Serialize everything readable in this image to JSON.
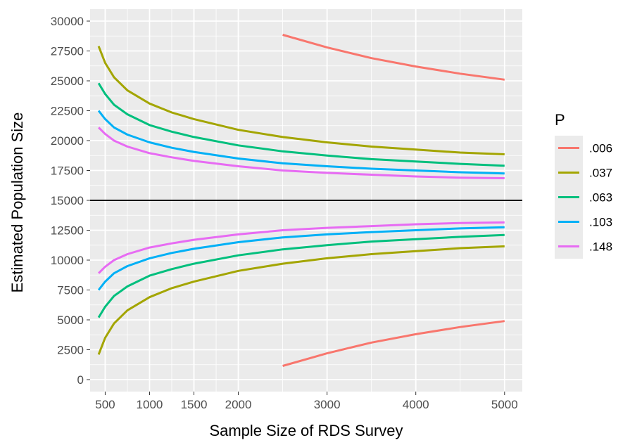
{
  "chart_data": {
    "type": "line",
    "xlabel": "Sample Size of RDS Survey",
    "ylabel": "Estimated Population Size",
    "xlim": [
      330,
      5200
    ],
    "ylim": [
      -1000,
      31000
    ],
    "x_ticks": [
      500,
      1000,
      1500,
      2000,
      3000,
      4000,
      5000
    ],
    "x_tick_labels": [
      "500",
      "1000",
      "1500",
      "2000",
      "3000",
      "4000",
      "5000"
    ],
    "y_ticks": [
      0,
      2500,
      5000,
      7500,
      10000,
      12500,
      15000,
      17500,
      20000,
      22500,
      25000,
      27500,
      30000
    ],
    "y_tick_labels": [
      "0",
      "2500",
      "5000",
      "7500",
      "10000",
      "12500",
      "15000",
      "17500",
      "20000",
      "22500",
      "25000",
      "27500",
      "30000"
    ],
    "hline": 15000,
    "grid": true,
    "legend": {
      "title": "P",
      "position": "right"
    },
    "series": [
      {
        "name": ".006",
        "color": "#F8766D",
        "band": "upper",
        "x": [
          2500,
          3000,
          3500,
          4000,
          4500,
          5000
        ],
        "y": [
          28850,
          27800,
          26900,
          26200,
          25600,
          25100
        ]
      },
      {
        "name": ".006",
        "color": "#F8766D",
        "band": "lower",
        "x": [
          2500,
          3000,
          3500,
          4000,
          4500,
          5000
        ],
        "y": [
          1150,
          2200,
          3100,
          3800,
          4400,
          4900
        ]
      },
      {
        "name": ".037",
        "color": "#A3A500",
        "band": "upper",
        "x": [
          426,
          500,
          600,
          750,
          1000,
          1250,
          1500,
          2000,
          2500,
          3000,
          3500,
          4000,
          4500,
          5000
        ],
        "y": [
          27900,
          26500,
          25300,
          24200,
          23100,
          22350,
          21800,
          20900,
          20300,
          19850,
          19500,
          19250,
          19000,
          18850
        ]
      },
      {
        "name": ".037",
        "color": "#A3A500",
        "band": "lower",
        "x": [
          426,
          500,
          600,
          750,
          1000,
          1250,
          1500,
          2000,
          2500,
          3000,
          3500,
          4000,
          4500,
          5000
        ],
        "y": [
          2100,
          3500,
          4700,
          5800,
          6900,
          7650,
          8200,
          9100,
          9700,
          10150,
          10500,
          10750,
          11000,
          11150
        ]
      },
      {
        "name": ".063",
        "color": "#00BF7D",
        "band": "upper",
        "x": [
          426,
          500,
          600,
          750,
          1000,
          1250,
          1500,
          2000,
          2500,
          3000,
          3500,
          4000,
          4500,
          5000
        ],
        "y": [
          24800,
          23900,
          23000,
          22200,
          21300,
          20750,
          20300,
          19600,
          19100,
          18750,
          18450,
          18250,
          18050,
          17900
        ]
      },
      {
        "name": ".063",
        "color": "#00BF7D",
        "band": "lower",
        "x": [
          426,
          500,
          600,
          750,
          1000,
          1250,
          1500,
          2000,
          2500,
          3000,
          3500,
          4000,
          4500,
          5000
        ],
        "y": [
          5200,
          6100,
          7000,
          7800,
          8700,
          9250,
          9700,
          10400,
          10900,
          11250,
          11550,
          11750,
          11950,
          12100
        ]
      },
      {
        "name": ".103",
        "color": "#00B0F6",
        "band": "upper",
        "x": [
          426,
          500,
          600,
          750,
          1000,
          1250,
          1500,
          2000,
          2500,
          3000,
          3500,
          4000,
          4500,
          5000
        ],
        "y": [
          22500,
          21800,
          21100,
          20500,
          19850,
          19400,
          19050,
          18500,
          18100,
          17850,
          17650,
          17500,
          17350,
          17250
        ]
      },
      {
        "name": ".103",
        "color": "#00B0F6",
        "band": "lower",
        "x": [
          426,
          500,
          600,
          750,
          1000,
          1250,
          1500,
          2000,
          2500,
          3000,
          3500,
          4000,
          4500,
          5000
        ],
        "y": [
          7500,
          8200,
          8900,
          9500,
          10150,
          10600,
          10950,
          11500,
          11900,
          12150,
          12350,
          12500,
          12650,
          12750
        ]
      },
      {
        "name": ".148",
        "color": "#E76BF3",
        "band": "upper",
        "x": [
          426,
          500,
          600,
          750,
          1000,
          1250,
          1500,
          2000,
          2500,
          3000,
          3500,
          4000,
          4500,
          5000
        ],
        "y": [
          21100,
          20550,
          20000,
          19500,
          18950,
          18600,
          18300,
          17850,
          17500,
          17300,
          17150,
          17000,
          16900,
          16850
        ]
      },
      {
        "name": ".148",
        "color": "#E76BF3",
        "band": "lower",
        "x": [
          426,
          500,
          600,
          750,
          1000,
          1250,
          1500,
          2000,
          2500,
          3000,
          3500,
          4000,
          4500,
          5000
        ],
        "y": [
          8900,
          9450,
          10000,
          10500,
          11050,
          11400,
          11700,
          12150,
          12500,
          12700,
          12850,
          13000,
          13100,
          13150
        ]
      }
    ]
  }
}
